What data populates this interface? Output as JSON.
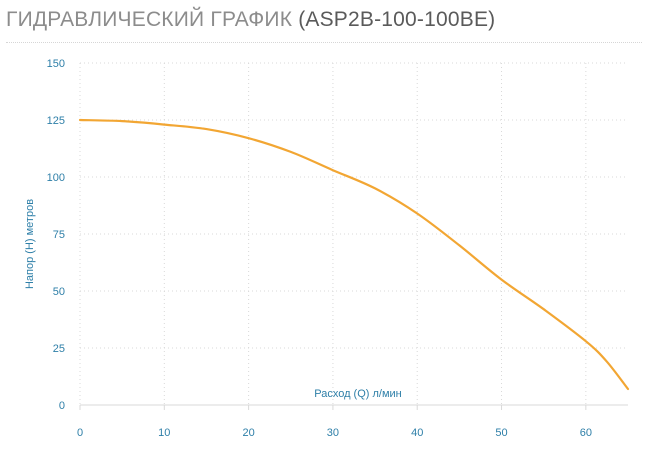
{
  "header": {
    "title": "ГИДРАВЛИЧЕСКИЙ ГРАФИК",
    "model": "(ASP2B-100-100BE)"
  },
  "colors": {
    "curve": "#f2a633",
    "axis_text": "#2e7fa8",
    "grid": "#d9d9d9",
    "title_gray": "#8c8c8c"
  },
  "chart_data": {
    "type": "line",
    "title": "",
    "xlabel": "Расход (Q) л/мин",
    "ylabel": "Напор (H) метров",
    "xlim": [
      0,
      65
    ],
    "ylim": [
      0,
      150
    ],
    "x_ticks": [
      0,
      10,
      20,
      30,
      40,
      50,
      60
    ],
    "y_ticks": [
      0,
      25,
      50,
      75,
      100,
      125,
      150
    ],
    "grid": "dotted, both axes",
    "legend": "none",
    "series": [
      {
        "x": [
          0,
          5,
          10,
          15,
          20,
          25,
          30,
          35,
          40,
          45,
          50,
          55,
          60,
          62.5,
          65
        ],
        "y": [
          125,
          124.5,
          123,
          121,
          117,
          111,
          103,
          95,
          84,
          70,
          55,
          42,
          28,
          19,
          7
        ]
      }
    ]
  }
}
